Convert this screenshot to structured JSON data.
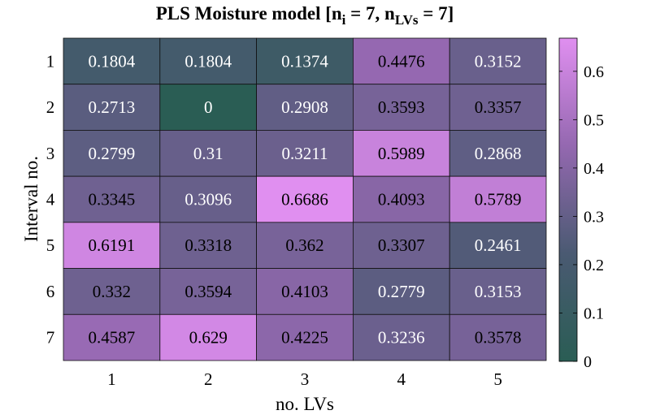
{
  "chart_data": {
    "type": "heatmap",
    "title": {
      "prefix": "PLS Moisture model [n",
      "sub1": "i",
      "mid": " = 7, n",
      "sub2": "LVs",
      "suffix": " = 7]"
    },
    "xlabel": "no. LVs",
    "ylabel": "Interval no.",
    "x_categories": [
      "1",
      "2",
      "3",
      "4",
      "5"
    ],
    "y_categories": [
      "1",
      "2",
      "3",
      "4",
      "5",
      "6",
      "7"
    ],
    "values": [
      [
        0.1804,
        0.1804,
        0.1374,
        0.4476,
        0.3152
      ],
      [
        0.2713,
        0,
        0.2908,
        0.3593,
        0.3357
      ],
      [
        0.2799,
        0.31,
        0.3211,
        0.5989,
        0.2868
      ],
      [
        0.3345,
        0.3096,
        0.6686,
        0.4093,
        0.5789
      ],
      [
        0.6191,
        0.3318,
        0.362,
        0.3307,
        0.2461
      ],
      [
        0.332,
        0.3594,
        0.4103,
        0.2779,
        0.3153
      ],
      [
        0.4587,
        0.629,
        0.4225,
        0.3236,
        0.3578
      ]
    ],
    "value_labels": [
      [
        "0.1804",
        "0.1804",
        "0.1374",
        "0.4476",
        "0.3152"
      ],
      [
        "0.2713",
        "0",
        "0.2908",
        "0.3593",
        "0.3357"
      ],
      [
        "0.2799",
        "0.31",
        "0.3211",
        "0.5989",
        "0.2868"
      ],
      [
        "0.3345",
        "0.3096",
        "0.6686",
        "0.4093",
        "0.5789"
      ],
      [
        "0.6191",
        "0.3318",
        "0.362",
        "0.3307",
        "0.2461"
      ],
      [
        "0.332",
        "0.3594",
        "0.4103",
        "0.2779",
        "0.3153"
      ],
      [
        "0.4587",
        "0.629",
        "0.4225",
        "0.3236",
        "0.3578"
      ]
    ],
    "colorbar": {
      "min": 0,
      "max": 0.6686,
      "ticks": [
        0,
        0.1,
        0.2,
        0.3,
        0.4,
        0.5,
        0.6
      ],
      "tick_labels": [
        "0",
        "0.1",
        "0.2",
        "0.3",
        "0.4",
        "0.5",
        "0.6"
      ],
      "colors": [
        "#2a5d54",
        "#4a5a72",
        "#9468b0",
        "#e08ff0"
      ]
    }
  }
}
